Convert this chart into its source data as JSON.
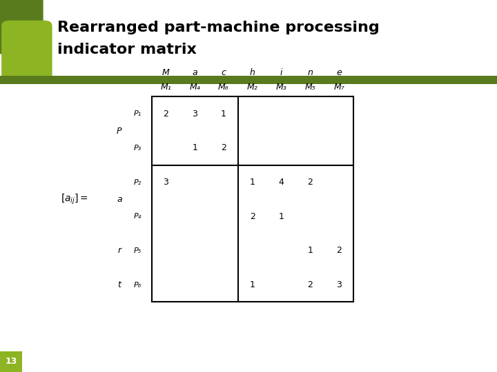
{
  "title_line1": "Rearranged part-machine processing",
  "title_line2": "indicator matrix",
  "bg_color": "#ffffff",
  "green_dark": "#5a7a1e",
  "green_light": "#8db422",
  "slide_number": "13",
  "machine_letters": [
    "M",
    "a",
    "c",
    "h",
    "i",
    "n",
    "e"
  ],
  "machine_labels": [
    "M₁",
    "M₄",
    "M₆",
    "M₂",
    "M₃",
    "M₅",
    "M₇"
  ],
  "part_labels": [
    "P₁",
    "P₃",
    "P₂",
    "P₄",
    "P₅",
    "P₆"
  ],
  "part_letters": [
    "P",
    "a",
    "r",
    "t"
  ],
  "matrix": [
    [
      "2",
      "3",
      "1",
      "",
      "",
      "",
      ""
    ],
    [
      "",
      "1",
      "2",
      "",
      "",
      "",
      ""
    ],
    [
      "3",
      "",
      "",
      "1",
      "4",
      "2",
      ""
    ],
    [
      "",
      "",
      "",
      "2",
      "1",
      "",
      ""
    ],
    [
      "",
      "",
      "",
      "",
      "",
      "1",
      "2"
    ],
    [
      "",
      "",
      "",
      "1",
      "",
      "2",
      "3"
    ]
  ]
}
